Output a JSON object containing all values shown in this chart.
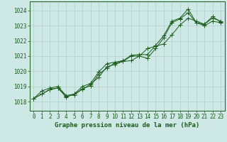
{
  "xlabel": "Graphe pression niveau de la mer (hPa)",
  "bg_color": "#cde8e5",
  "plot_bg_color": "#cde8e5",
  "grid_color": "#afd0cd",
  "line_color": "#1a5c1a",
  "xlim": [
    -0.5,
    23.5
  ],
  "ylim": [
    1017.4,
    1024.6
  ],
  "yticks": [
    1018,
    1019,
    1020,
    1021,
    1022,
    1023,
    1024
  ],
  "xticks": [
    0,
    1,
    2,
    3,
    4,
    5,
    6,
    7,
    8,
    9,
    10,
    11,
    12,
    13,
    14,
    15,
    16,
    17,
    18,
    19,
    20,
    21,
    22,
    23
  ],
  "series1_x": [
    0,
    1,
    2,
    3,
    4,
    5,
    6,
    7,
    8,
    9,
    10,
    11,
    12,
    13,
    14,
    15,
    16,
    17,
    18,
    19,
    20,
    21,
    22,
    23
  ],
  "series1_y": [
    1018.2,
    1018.5,
    1018.8,
    1018.9,
    1018.35,
    1018.45,
    1018.85,
    1019.05,
    1019.8,
    1020.2,
    1020.55,
    1020.65,
    1020.7,
    1021.0,
    1021.5,
    1021.65,
    1021.8,
    1022.4,
    1023.05,
    1023.5,
    1023.3,
    1023.1,
    1023.5,
    1023.3
  ],
  "series2_x": [
    0,
    1,
    2,
    3,
    4,
    5,
    6,
    7,
    8,
    9,
    10,
    11,
    12,
    13,
    14,
    15,
    16,
    17,
    18,
    19,
    20,
    21,
    22,
    23
  ],
  "series2_y": [
    1018.2,
    1018.5,
    1018.8,
    1018.9,
    1018.3,
    1018.5,
    1018.8,
    1019.15,
    1019.6,
    1020.3,
    1020.45,
    1020.65,
    1021.0,
    1021.0,
    1020.85,
    1021.5,
    1022.2,
    1023.2,
    1023.45,
    1023.85,
    1023.2,
    1023.0,
    1023.3,
    1023.2
  ],
  "series3_x": [
    0,
    1,
    2,
    3,
    4,
    5,
    6,
    7,
    8,
    9,
    10,
    11,
    12,
    13,
    14,
    15,
    16,
    17,
    18,
    19,
    20,
    21,
    22,
    23
  ],
  "series3_y": [
    1018.2,
    1018.7,
    1018.9,
    1019.0,
    1018.4,
    1018.5,
    1019.0,
    1019.2,
    1019.95,
    1020.5,
    1020.6,
    1020.7,
    1021.05,
    1021.1,
    1021.1,
    1021.7,
    1022.35,
    1023.3,
    1023.5,
    1024.1,
    1023.2,
    1023.1,
    1023.6,
    1023.25
  ],
  "tick_fontsize": 5.5,
  "label_fontsize": 6.5,
  "lw": 0.7,
  "ms": 2.0
}
